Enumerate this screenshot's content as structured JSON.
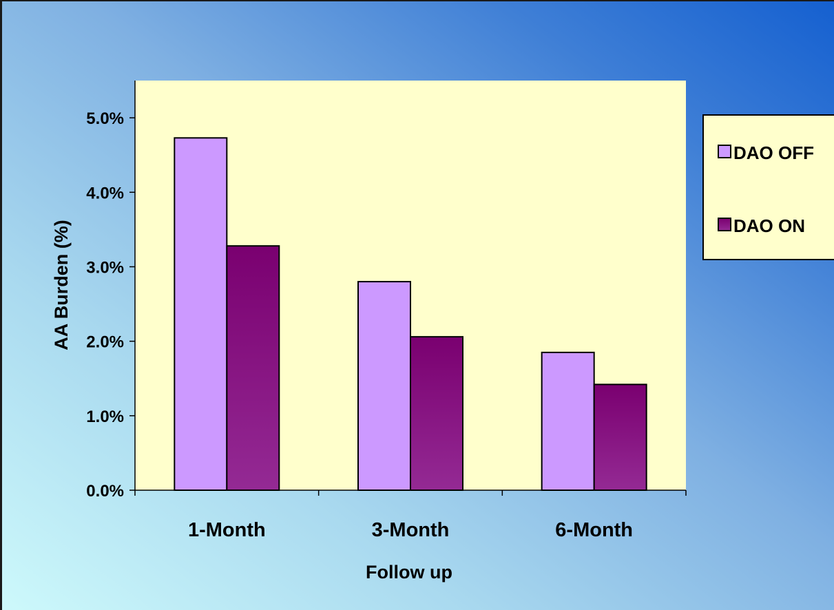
{
  "chart_data": {
    "type": "bar",
    "title": "",
    "xlabel": "Follow up",
    "ylabel": "AA Burden (%)",
    "categories": [
      "1-Month",
      "3-Month",
      "6-Month"
    ],
    "series": [
      {
        "name": "DAO OFF",
        "values": [
          4.73,
          2.8,
          1.85
        ],
        "color": "#cc99ff"
      },
      {
        "name": "DAO ON",
        "values": [
          3.28,
          2.06,
          1.42
        ],
        "color": "#8b1a8b"
      }
    ],
    "ylim": [
      0,
      5.5
    ],
    "yticks": [
      0,
      1,
      2,
      3,
      4,
      5
    ],
    "ytick_labels": [
      "0.0%",
      "1.0%",
      "2.0%",
      "3.0%",
      "4.0%",
      "5.0%"
    ],
    "grid": false,
    "legend_position": "right",
    "plot_background": "#ffffcc"
  }
}
